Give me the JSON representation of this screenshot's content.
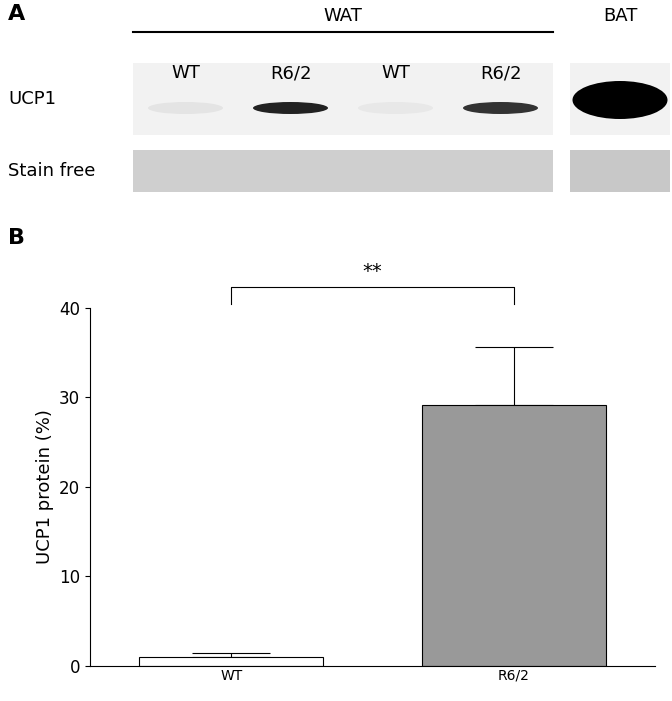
{
  "blot": {
    "panel_label": "A",
    "groups": [
      {
        "label": "WAT",
        "lanes": [
          "WT",
          "R6/2",
          "WT",
          "R6/2"
        ]
      },
      {
        "label": "BAT",
        "lanes": []
      }
    ],
    "rows": [
      "UCP1",
      "Stain free"
    ]
  },
  "chart_data": {
    "panel_label": "B",
    "type": "bar",
    "categories": [
      "WT",
      "R6/2"
    ],
    "values": [
      1.0,
      29.2
    ],
    "errors": [
      0.4,
      6.4
    ],
    "colors": [
      "#ffffff",
      "#999999"
    ],
    "ylabel": "UCP1 protein (%)",
    "ylim": [
      0,
      40
    ],
    "yticks": [
      0,
      10,
      20,
      30,
      40
    ],
    "significance": "**"
  }
}
